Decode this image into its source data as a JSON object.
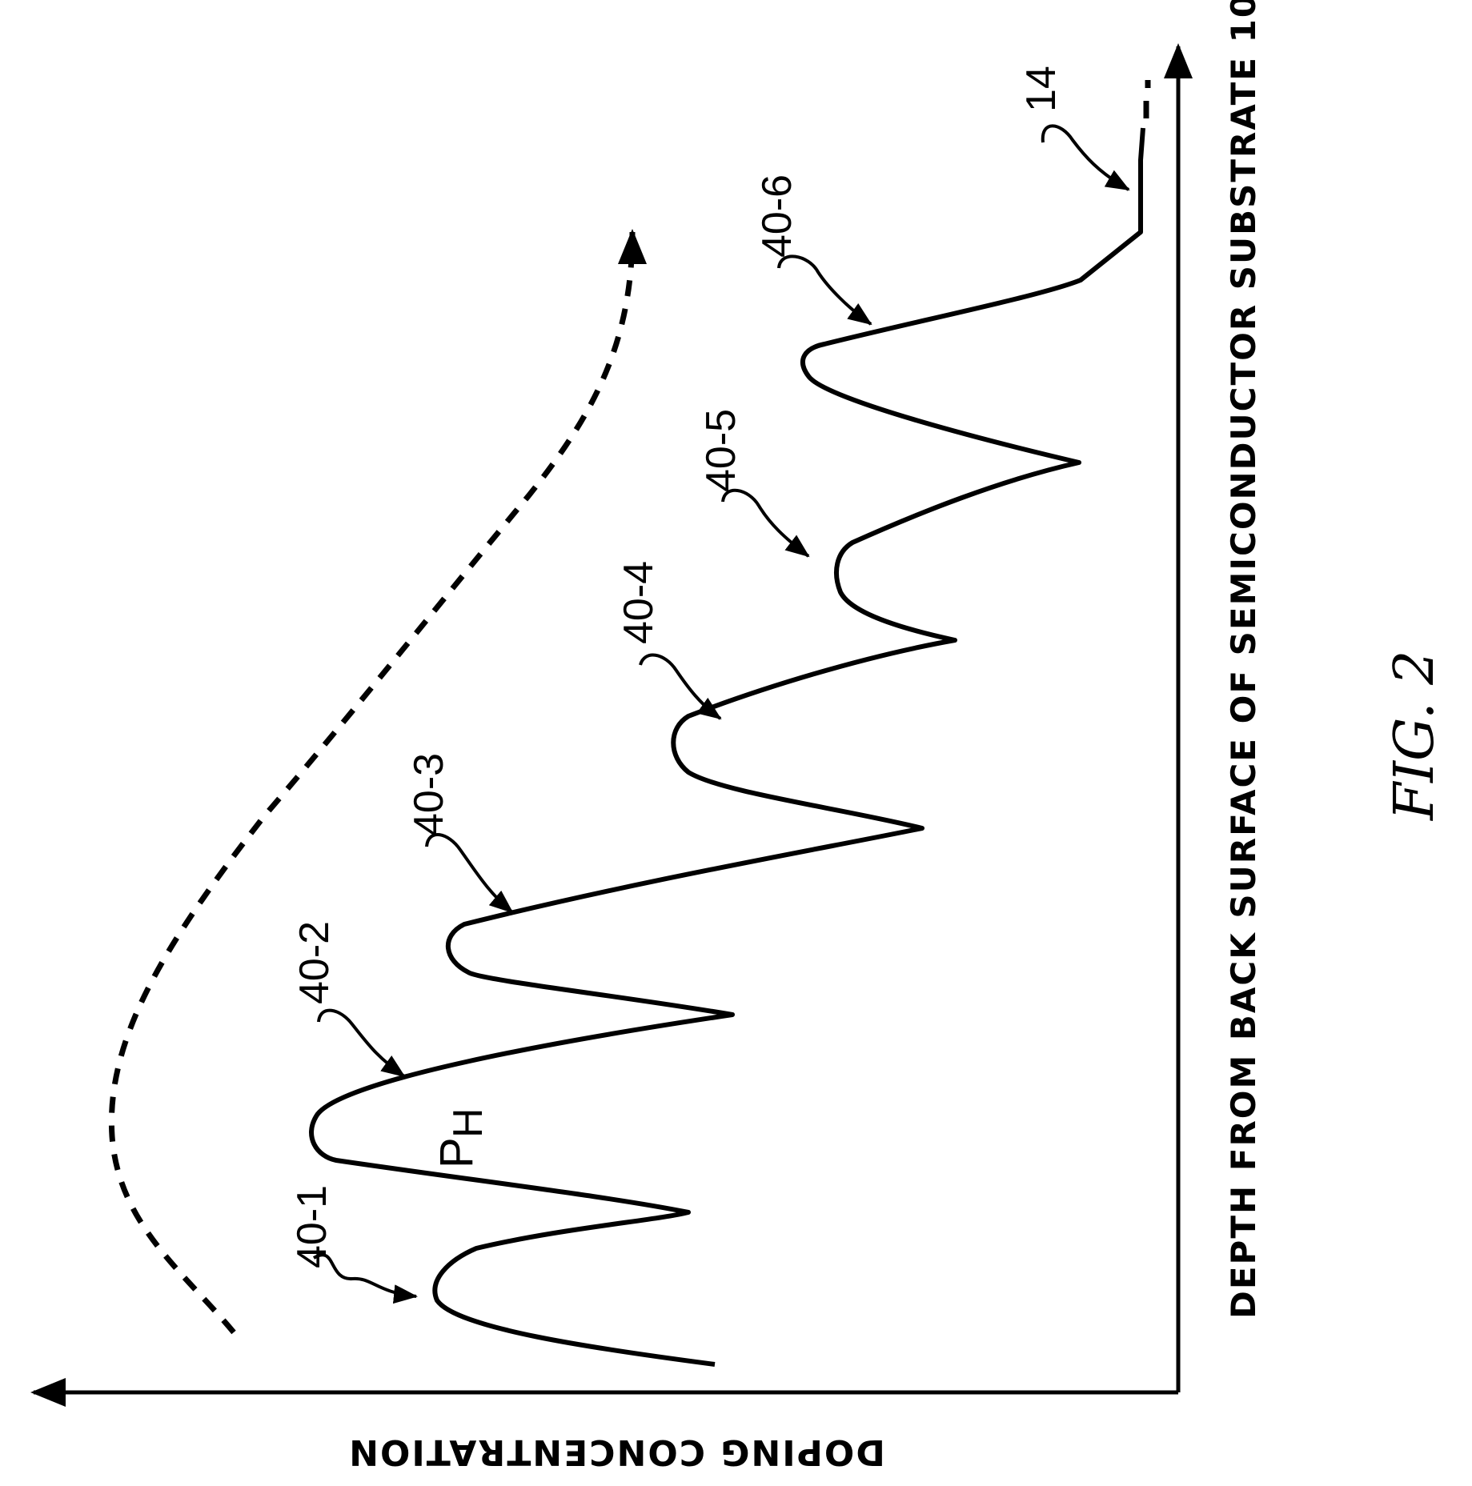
{
  "figure": {
    "caption": "FIG. 2",
    "x_axis_label": "DEPTH FROM BACK SURFACE OF SEMICONDUCTOR SUBSTRATE 10",
    "y_axis_label": "DOPING CONCENTRATION"
  },
  "labels": {
    "peak_1": "40-1",
    "peak_2": "40-2",
    "peak_3": "40-3",
    "peak_4": "40-4",
    "peak_5": "40-5",
    "peak_6": "40-6",
    "region_14": "14",
    "peak_h_main": "P",
    "peak_h_sub": "H"
  }
}
